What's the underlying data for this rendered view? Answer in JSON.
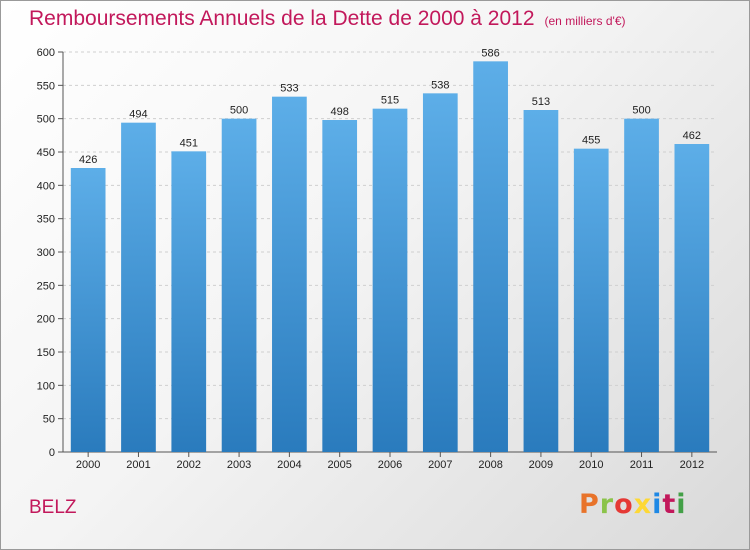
{
  "header": {
    "title": "Remboursements Annuels de la Dette de 2000 à 2012",
    "unit": "(en milliers d'€)"
  },
  "footer": {
    "commune": "BELZ",
    "logo_text": "Proxiti",
    "logo_colors": [
      "#e8732a",
      "#8bc34a",
      "#e53935",
      "#fdd835",
      "#1e88e5",
      "#c2185b",
      "#43a047"
    ]
  },
  "chart_data": {
    "type": "bar",
    "categories": [
      "2000",
      "2001",
      "2002",
      "2003",
      "2004",
      "2005",
      "2006",
      "2007",
      "2008",
      "2009",
      "2010",
      "2011",
      "2012"
    ],
    "values": [
      426,
      494,
      451,
      500,
      533,
      498,
      515,
      538,
      586,
      513,
      455,
      500,
      462
    ],
    "data_labels": [
      "426",
      "494",
      "451",
      "500",
      "533",
      "498",
      "515",
      "538",
      "586",
      "513",
      "455",
      "500",
      "462"
    ],
    "ylim": [
      0,
      600
    ],
    "yticks": [
      0,
      50,
      100,
      150,
      200,
      250,
      300,
      350,
      400,
      450,
      500,
      550,
      600
    ],
    "grid": true,
    "bar_color_top": "#5daee8",
    "bar_color_bottom": "#2a7bbd"
  }
}
